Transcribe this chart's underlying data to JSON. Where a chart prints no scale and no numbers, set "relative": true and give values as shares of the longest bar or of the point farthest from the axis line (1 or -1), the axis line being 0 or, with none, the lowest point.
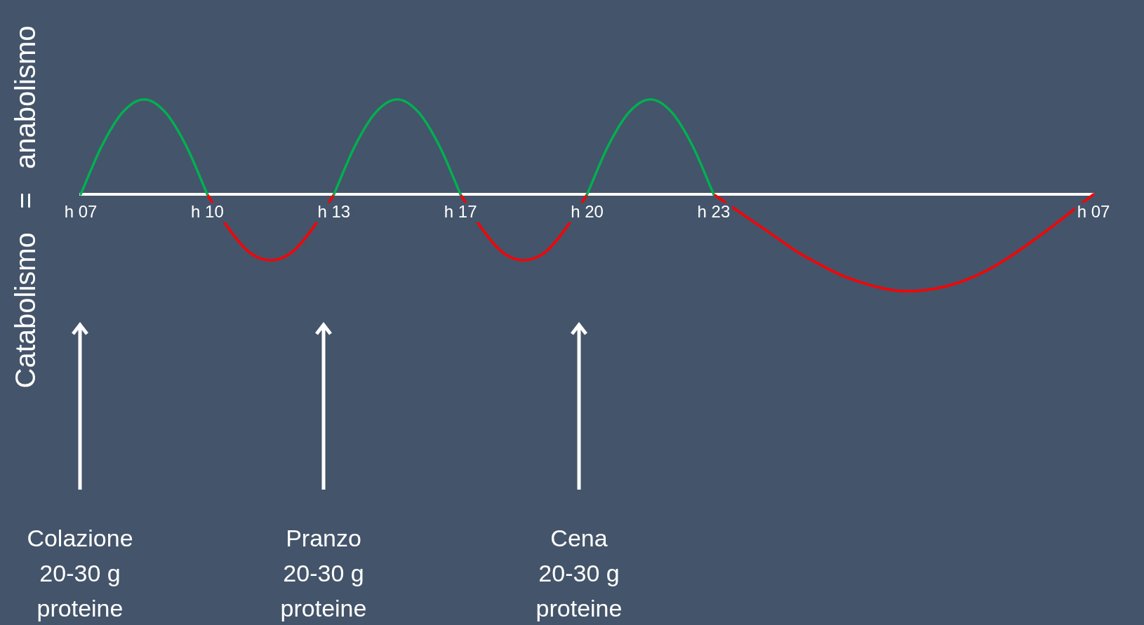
{
  "chart_data": {
    "type": "line",
    "relative": true,
    "ylabel": "Catabolismo   =   anabolismo",
    "marker": "none",
    "line_style": "solid",
    "legend": false,
    "categories": [
      "h 07",
      null,
      null,
      null,
      null,
      null,
      "h 10",
      null,
      null,
      null,
      null,
      null,
      "h 13",
      null,
      null,
      null,
      null,
      null,
      "h 17",
      null,
      null,
      null,
      null,
      null,
      "h 20",
      null,
      null,
      null,
      null,
      null,
      "h 23",
      null,
      null,
      null,
      null,
      null,
      null,
      null,
      null,
      null,
      null,
      null,
      null,
      null,
      null,
      null,
      null,
      null,
      "h 07"
    ],
    "series": [
      {
        "color": "#00b050",
        "values": [
          0,
          0.5,
          0.85,
          0.98,
          0.85,
          0.5,
          0,
          null,
          null,
          null,
          null,
          null,
          0,
          0.5,
          0.85,
          0.98,
          0.85,
          0.5,
          0,
          null,
          null,
          null,
          null,
          null,
          0,
          0.5,
          0.85,
          0.98,
          0.85,
          0.5,
          0,
          null,
          null,
          null,
          null,
          null,
          null,
          null,
          null,
          null,
          null,
          null,
          null,
          null,
          null,
          null,
          null,
          null,
          null
        ]
      },
      {
        "color": "#ff0000",
        "values": [
          null,
          null,
          null,
          null,
          null,
          null,
          0,
          -0.35,
          -0.6,
          -0.68,
          -0.6,
          -0.35,
          0,
          null,
          null,
          null,
          null,
          null,
          0,
          -0.35,
          -0.6,
          -0.68,
          -0.6,
          -0.35,
          0,
          null,
          null,
          null,
          null,
          null,
          0,
          -0.15,
          -0.3,
          -0.45,
          -0.6,
          -0.72,
          -0.83,
          -0.91,
          -0.97,
          -1,
          -0.99,
          -0.95,
          -0.88,
          -0.78,
          -0.65,
          -0.5,
          -0.34,
          -0.17,
          0
        ]
      }
    ],
    "annotations": [
      "Colazione\n20-30 g\nproteine",
      "Pranzo\n20-30 g\nproteine",
      "Cena\n20-30 g\nproteine"
    ]
  }
}
